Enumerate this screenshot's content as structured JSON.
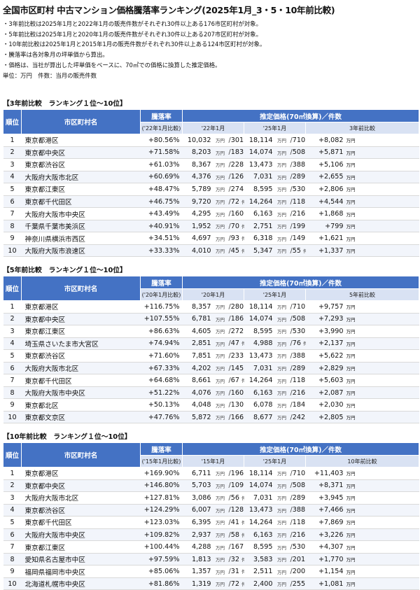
{
  "title": "全国市区町村 中古マンション価格騰落率ランキング(2025年1月_3・5・10年前比較)",
  "notes": [
    "・3年前比較は2025年1月と2022年1月の販売件数がそれぞれ30件以上ある176市区町村が対象。",
    "・5年前比較は2025年1月と2020年1月の販売件数がそれぞれ30件以上ある207市区町村が対象。",
    "・10年前比較は2025年1月と2015年1月の販売件数がそれぞれ30件以上ある124市区町村が対象。",
    "・騰落率は各対象月の坪単価から算出。",
    "・価格は、当社が算出した坪単価をベースに、70㎡での価格に換算した推定価格。"
  ],
  "unit_note": "単位：万円　件数：当月の販売件数",
  "units": {
    "price": "万円",
    "count": "件",
    "sep": "/"
  },
  "headers": {
    "rank": "順位",
    "name": "市区町村名",
    "rate": "騰落率",
    "price_group": "推定価格(70㎡換算)／件数",
    "now": "'25年1月"
  },
  "sections": [
    {
      "label": "【3年前比較　ランキング１位～10位】",
      "rate_sub": "('22年1月比較)",
      "past": "'22年1月",
      "diff": "3年前比較",
      "rows": [
        {
          "rank": "1",
          "name": "東京都港区",
          "rate": "+80.56%",
          "p1": "10,032",
          "c1": "301",
          "p2": "18,114",
          "c2": "710",
          "diff": "+8,082"
        },
        {
          "rank": "2",
          "name": "東京都中央区",
          "rate": "+71.58%",
          "p1": "8,203",
          "c1": "183",
          "p2": "14,074",
          "c2": "508",
          "diff": "+5,871"
        },
        {
          "rank": "3",
          "name": "東京都渋谷区",
          "rate": "+61.03%",
          "p1": "8,367",
          "c1": "228",
          "p2": "13,473",
          "c2": "388",
          "diff": "+5,106"
        },
        {
          "rank": "4",
          "name": "大阪府大阪市北区",
          "rate": "+60.69%",
          "p1": "4,376",
          "c1": "126",
          "p2": "7,031",
          "c2": "289",
          "diff": "+2,655"
        },
        {
          "rank": "5",
          "name": "東京都江東区",
          "rate": "+48.47%",
          "p1": "5,789",
          "c1": "274",
          "p2": "8,595",
          "c2": "530",
          "diff": "+2,806"
        },
        {
          "rank": "6",
          "name": "東京都千代田区",
          "rate": "+46.75%",
          "p1": "9,720",
          "c1": "72",
          "p2": "14,264",
          "c2": "118",
          "diff": "+4,544"
        },
        {
          "rank": "7",
          "name": "大阪府大阪市中央区",
          "rate": "+43.49%",
          "p1": "4,295",
          "c1": "160",
          "p2": "6,163",
          "c2": "216",
          "diff": "+1,868"
        },
        {
          "rank": "8",
          "name": "千葉県千葉市美浜区",
          "rate": "+40.91%",
          "p1": "1,952",
          "c1": "70",
          "p2": "2,751",
          "c2": "199",
          "diff": "+799"
        },
        {
          "rank": "9",
          "name": "神奈川県横浜市西区",
          "rate": "+34.51%",
          "p1": "4,697",
          "c1": "93",
          "p2": "6,318",
          "c2": "149",
          "diff": "+1,621"
        },
        {
          "rank": "10",
          "name": "大阪府大阪市浪速区",
          "rate": "+33.33%",
          "p1": "4,010",
          "c1": "45",
          "p2": "5,347",
          "c2": "55",
          "diff": "+1,337"
        }
      ]
    },
    {
      "label": "【5年前比較　ランキング１位～10位】",
      "rate_sub": "('20年1月比較)",
      "past": "'20年1月",
      "diff": "5年前比較",
      "rows": [
        {
          "rank": "1",
          "name": "東京都港区",
          "rate": "+116.75%",
          "p1": "8,357",
          "c1": "280",
          "p2": "18,114",
          "c2": "710",
          "diff": "+9,757"
        },
        {
          "rank": "2",
          "name": "東京都中央区",
          "rate": "+107.55%",
          "p1": "6,781",
          "c1": "186",
          "p2": "14,074",
          "c2": "508",
          "diff": "+7,293"
        },
        {
          "rank": "3",
          "name": "東京都江東区",
          "rate": "+86.63%",
          "p1": "4,605",
          "c1": "272",
          "p2": "8,595",
          "c2": "530",
          "diff": "+3,990"
        },
        {
          "rank": "4",
          "name": "埼玉県さいたま市大宮区",
          "rate": "+74.94%",
          "p1": "2,851",
          "c1": "47",
          "p2": "4,988",
          "c2": "76",
          "diff": "+2,137"
        },
        {
          "rank": "5",
          "name": "東京都渋谷区",
          "rate": "+71.60%",
          "p1": "7,851",
          "c1": "233",
          "p2": "13,473",
          "c2": "388",
          "diff": "+5,622"
        },
        {
          "rank": "6",
          "name": "大阪府大阪市北区",
          "rate": "+67.33%",
          "p1": "4,202",
          "c1": "145",
          "p2": "7,031",
          "c2": "289",
          "diff": "+2,829"
        },
        {
          "rank": "7",
          "name": "東京都千代田区",
          "rate": "+64.68%",
          "p1": "8,661",
          "c1": "67",
          "p2": "14,264",
          "c2": "118",
          "diff": "+5,603"
        },
        {
          "rank": "8",
          "name": "大阪府大阪市中央区",
          "rate": "+51.22%",
          "p1": "4,076",
          "c1": "160",
          "p2": "6,163",
          "c2": "216",
          "diff": "+2,087"
        },
        {
          "rank": "9",
          "name": "東京都北区",
          "rate": "+50.13%",
          "p1": "4,048",
          "c1": "130",
          "p2": "6,078",
          "c2": "184",
          "diff": "+2,030"
        },
        {
          "rank": "10",
          "name": "東京都文京区",
          "rate": "+47.76%",
          "p1": "5,872",
          "c1": "166",
          "p2": "8,677",
          "c2": "242",
          "diff": "+2,805"
        }
      ]
    },
    {
      "label": "【10年前比較　ランキング１位～10位】",
      "rate_sub": "('15年1月比較)",
      "past": "'15年1月",
      "diff": "10年前比較",
      "rows": [
        {
          "rank": "1",
          "name": "東京都港区",
          "rate": "+169.90%",
          "p1": "6,711",
          "c1": "196",
          "p2": "18,114",
          "c2": "710",
          "diff": "+11,403"
        },
        {
          "rank": "2",
          "name": "東京都中央区",
          "rate": "+146.80%",
          "p1": "5,703",
          "c1": "109",
          "p2": "14,074",
          "c2": "508",
          "diff": "+8,371"
        },
        {
          "rank": "3",
          "name": "大阪府大阪市北区",
          "rate": "+127.81%",
          "p1": "3,086",
          "c1": "56",
          "p2": "7,031",
          "c2": "289",
          "diff": "+3,945"
        },
        {
          "rank": "4",
          "name": "東京都渋谷区",
          "rate": "+124.29%",
          "p1": "6,007",
          "c1": "128",
          "p2": "13,473",
          "c2": "388",
          "diff": "+7,466"
        },
        {
          "rank": "5",
          "name": "東京都千代田区",
          "rate": "+123.03%",
          "p1": "6,395",
          "c1": "41",
          "p2": "14,264",
          "c2": "118",
          "diff": "+7,869"
        },
        {
          "rank": "6",
          "name": "大阪府大阪市中央区",
          "rate": "+109.82%",
          "p1": "2,937",
          "c1": "58",
          "p2": "6,163",
          "c2": "216",
          "diff": "+3,226"
        },
        {
          "rank": "7",
          "name": "東京都江東区",
          "rate": "+100.44%",
          "p1": "4,288",
          "c1": "167",
          "p2": "8,595",
          "c2": "530",
          "diff": "+4,307"
        },
        {
          "rank": "8",
          "name": "愛知県名古屋市中区",
          "rate": "+97.59%",
          "p1": "1,813",
          "c1": "32",
          "p2": "3,583",
          "c2": "201",
          "diff": "+1,770"
        },
        {
          "rank": "9",
          "name": "福岡県福岡市中央区",
          "rate": "+85.06%",
          "p1": "1,357",
          "c1": "31",
          "p2": "2,511",
          "c2": "200",
          "diff": "+1,154"
        },
        {
          "rank": "10",
          "name": "北海道札幌市中央区",
          "rate": "+81.86%",
          "p1": "1,319",
          "c1": "72",
          "p2": "2,400",
          "c2": "255",
          "diff": "+1,081"
        }
      ]
    }
  ]
}
